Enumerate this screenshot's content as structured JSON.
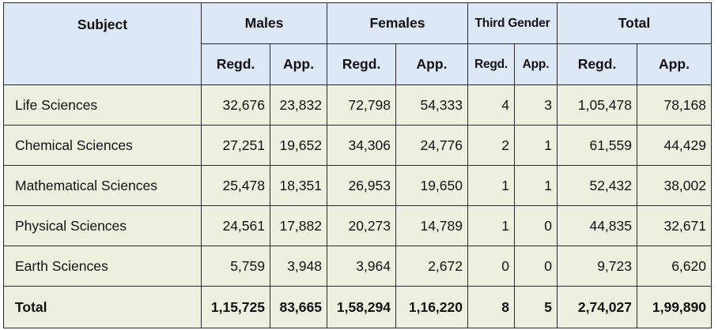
{
  "table": {
    "headers": {
      "subject": "Subject",
      "groups": [
        "Males",
        "Females",
        "Third Gender",
        "Total"
      ],
      "sub": [
        "Regd.",
        "App.",
        "Regd.",
        "App.",
        "Regd.",
        "App.",
        "Regd.",
        "App."
      ]
    },
    "rows": [
      {
        "name": "Life Sciences",
        "cells": [
          "32,676",
          "23,832",
          "72,798",
          "54,333",
          "4",
          "3",
          "1,05,478",
          "78,168"
        ]
      },
      {
        "name": "Chemical Sciences",
        "cells": [
          "27,251",
          "19,652",
          "34,306",
          "24,776",
          "2",
          "1",
          "61,559",
          "44,429"
        ]
      },
      {
        "name": "Mathematical Sciences",
        "cells": [
          "25,478",
          "18,351",
          "26,953",
          "19,650",
          "1",
          "1",
          "52,432",
          "38,002"
        ]
      },
      {
        "name": "Physical Sciences",
        "cells": [
          "24,561",
          "17,882",
          "20,273",
          "14,789",
          "1",
          "0",
          "44,835",
          "32,671"
        ]
      },
      {
        "name": "Earth Sciences",
        "cells": [
          "5,759",
          "3,948",
          "3,964",
          "2,672",
          "0",
          "0",
          "9,723",
          "6,620"
        ]
      }
    ],
    "total": {
      "name": "Total",
      "cells": [
        "1,15,725",
        "83,665",
        "1,58,294",
        "1,16,220",
        "8",
        "5",
        "2,74,027",
        "1,99,890"
      ]
    }
  },
  "colors": {
    "header_bg": "#dde8f6",
    "body_bg": "#ebf1de",
    "border": "#2a2a2a"
  }
}
